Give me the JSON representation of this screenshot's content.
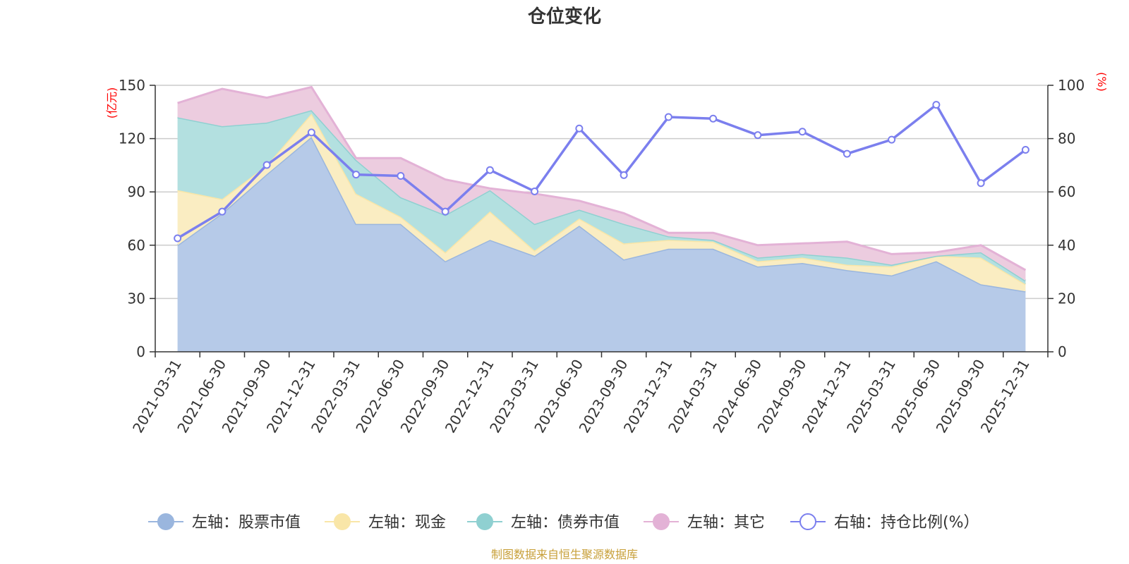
{
  "chart_data": {
    "type": "area",
    "title": "仓位变化",
    "left_axis_unit": "(亿元)",
    "right_axis_unit": "(%)",
    "left_ylim": [
      0,
      150
    ],
    "left_ticks": [
      "0",
      "30",
      "60",
      "90",
      "120",
      "150"
    ],
    "right_ylim": [
      0,
      100
    ],
    "right_ticks": [
      "0",
      "20",
      "40",
      "60",
      "80",
      "100"
    ],
    "categories": [
      "2021-03-31",
      "2021-06-30",
      "2021-09-30",
      "2021-12-31",
      "2022-03-31",
      "2022-06-30",
      "2022-09-30",
      "2022-12-31",
      "2023-03-31",
      "2023-06-30",
      "2023-09-30",
      "2023-12-31",
      "2024-03-31",
      "2024-06-30",
      "2024-09-30",
      "2024-12-31",
      "2025-03-31",
      "2025-06-30",
      "2025-09-30",
      "2025-12-31"
    ],
    "stacked_series": [
      {
        "name": "左轴：股票市值",
        "color": "#9ab6de",
        "fill": "#b6cae8",
        "values": [
          60,
          78,
          100,
          121,
          72,
          72,
          51,
          63,
          54,
          71,
          52,
          58,
          58,
          48,
          50,
          46,
          43,
          51,
          38,
          34
        ]
      },
      {
        "name": "左轴：现金",
        "color": "#f9e6a8",
        "fill": "#faedc2",
        "values": [
          31,
          8,
          5,
          13,
          17,
          4,
          5,
          16,
          3,
          4,
          9,
          5,
          4,
          3,
          3,
          3,
          5,
          3,
          15,
          4
        ]
      },
      {
        "name": "左轴：债券市值",
        "color": "#8fd0d1",
        "fill": "#b3e0e0",
        "values": [
          41,
          41,
          24,
          2,
          19,
          11,
          21,
          12,
          15,
          5,
          11,
          2,
          1,
          2,
          2,
          4,
          1,
          0,
          3,
          2
        ]
      },
      {
        "name": "左轴：其它",
        "color": "#e3b2d6",
        "fill": "#ecccdf",
        "values": [
          8,
          21,
          14,
          13,
          1,
          22,
          20,
          1,
          17,
          5,
          6,
          2,
          4,
          7,
          6,
          9,
          6,
          2,
          4,
          6
        ]
      }
    ],
    "line_series": {
      "name": "右轴：持仓比例(%）",
      "color": "#7b7fee",
      "values": [
        42.6,
        52.6,
        70.1,
        82.3,
        66.5,
        66.0,
        52.6,
        68.2,
        60.2,
        83.8,
        66.3,
        88.1,
        87.5,
        81.3,
        82.6,
        74.3,
        79.6,
        92.7,
        63.3,
        75.8
      ]
    },
    "legend_position": "bottom-center",
    "source_note": "制图数据来自恒生聚源数据库",
    "grid_color": "#cccccc",
    "unit_color": "#ff0000",
    "source_color": "#c8a03a"
  }
}
